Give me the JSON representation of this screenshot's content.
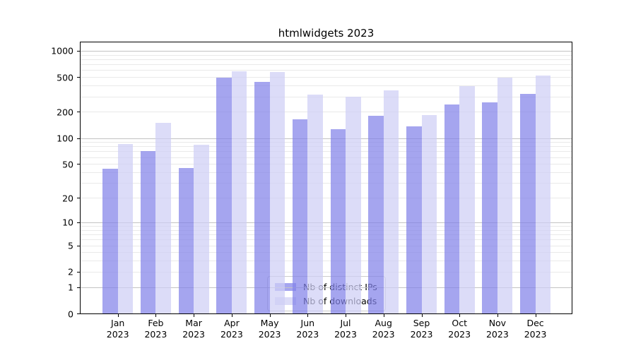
{
  "title": "htmlwidgets 2023",
  "colors": {
    "ips_bar": "rgba(130,130,233,0.72)",
    "downloads_bar": "rgba(206,206,245,0.72)",
    "major_gridline": "#c3c3c3",
    "minor_gridline": "#e9e9e9",
    "spine": "#000000",
    "legend_border": "#cccccc",
    "legend_background": "rgba(255,255,255,0.8)"
  },
  "chart_data": {
    "type": "bar",
    "title": "htmlwidgets 2023",
    "xlabel": "",
    "ylabel": "",
    "y_scale": "log10(value+1)",
    "grid": true,
    "legend_position": "lower center",
    "categories": [
      "Jan",
      "Feb",
      "Mar",
      "Apr",
      "May",
      "Jun",
      "Jul",
      "Aug",
      "Sep",
      "Oct",
      "Nov",
      "Dec"
    ],
    "category_year": "2023",
    "series": [
      {
        "name": "Nb of distinct IPs",
        "color": "rgba(130,130,233,0.72)",
        "values": [
          44,
          70,
          45,
          490,
          445,
          163,
          126,
          182,
          137,
          242,
          257,
          322
        ]
      },
      {
        "name": "Nb of downloads",
        "color": "rgba(206,206,245,0.72)",
        "values": [
          86,
          150,
          83,
          580,
          575,
          315,
          296,
          350,
          184,
          398,
          490,
          520
        ]
      }
    ],
    "y_ticks": [
      0,
      1,
      2,
      5,
      10,
      20,
      50,
      100,
      200,
      500,
      1000
    ],
    "y_major_gridlines": [
      1,
      10,
      100,
      1000
    ],
    "y_minor_gridlines": [
      2,
      3,
      4,
      5,
      6,
      7,
      8,
      9,
      20,
      30,
      40,
      50,
      60,
      70,
      80,
      90,
      200,
      300,
      400,
      500,
      600,
      700,
      800,
      900
    ],
    "ylim": [
      0,
      1000
    ]
  }
}
